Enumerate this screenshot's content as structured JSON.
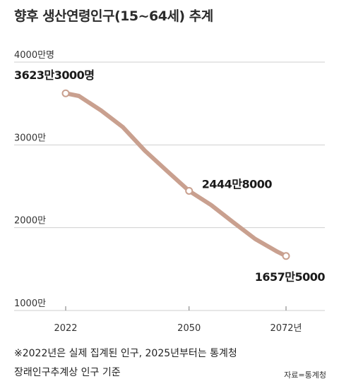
{
  "title": "향후 생산연령인구(15~64세) 추계",
  "footnote": {
    "line1": "※2022년은 실제 집계된 인구, 2025년부터는 통계청",
    "line2": "장래인구추계상 인구 기준"
  },
  "source": "자료=통계청",
  "colors": {
    "line": "#c9a08f",
    "marker_fill": "#ffffff",
    "grid": "#cfcfcf"
  },
  "chart_data": {
    "type": "line",
    "title": "향후 생산연령인구(15~64세) 추계",
    "unit": "만명",
    "x": [
      2022,
      2025,
      2030,
      2035,
      2040,
      2045,
      2050,
      2055,
      2060,
      2065,
      2070,
      2072
    ],
    "y": [
      3623,
      3591,
      3417,
      3213,
      2929,
      2685,
      2445,
      2274,
      2066,
      1864,
      1711,
      1658
    ],
    "ylim": [
      1000,
      4000
    ],
    "xlim": [
      2022,
      2072
    ],
    "yticks": [
      {
        "value": 4000,
        "label": "4000만명"
      },
      {
        "value": 3000,
        "label": "3000만"
      },
      {
        "value": 2000,
        "label": "2000만"
      },
      {
        "value": 1000,
        "label": "1000만"
      }
    ],
    "xticks": [
      {
        "value": 2022,
        "label": "2022"
      },
      {
        "value": 2050,
        "label": "2050"
      },
      {
        "value": 2072,
        "label": "2072년"
      }
    ],
    "annotations": [
      {
        "x": 2022,
        "y": 3623,
        "label": "3623만3000명"
      },
      {
        "x": 2050,
        "y": 2445,
        "label": "2444만8000"
      },
      {
        "x": 2072,
        "y": 1658,
        "label": "1657만5000"
      }
    ],
    "grid": true,
    "legend": "none"
  }
}
